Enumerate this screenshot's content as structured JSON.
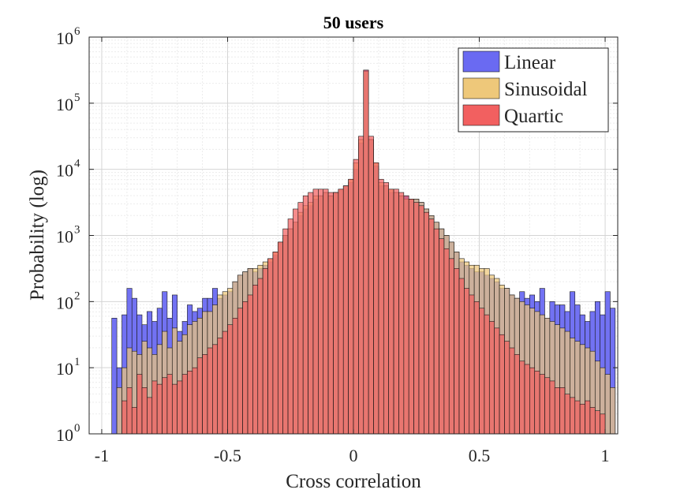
{
  "chart_data": {
    "type": "bar",
    "title": "50 users",
    "xlabel": "Cross correlation",
    "ylabel": "Probability (log)",
    "xlim": [
      -1.05,
      1.05
    ],
    "ylim_log10": [
      0,
      6
    ],
    "yscale": "log",
    "grid": true,
    "legend_position": "top-right",
    "x_ticks": [
      -1,
      -0.5,
      0,
      0.5,
      1
    ],
    "x_tick_labels": [
      "-1",
      "-0.5",
      "0",
      "0.5",
      "1"
    ],
    "y_tick_base": "10",
    "y_tick_exponents": [
      "0",
      "1",
      "2",
      "3",
      "4",
      "5",
      "6"
    ],
    "bin_width": 0.02,
    "bin_start": -0.96,
    "series": [
      {
        "name": "Linear",
        "color": "#6a6af2",
        "log10_values": [
          1.75,
          1.0,
          1.8,
          2.2,
          2.05,
          1.8,
          1.65,
          1.85,
          1.7,
          1.9,
          2.15,
          1.75,
          2.1,
          1.55,
          1.7,
          1.95,
          1.85,
          1.9,
          2.05,
          2.05,
          2.2,
          2.05,
          2.1,
          2.15,
          2.3,
          2.4,
          2.45,
          2.5,
          2.45,
          2.5,
          2.55,
          2.6,
          2.7,
          2.9,
          3.0,
          3.1,
          3.2,
          3.3,
          3.4,
          3.45,
          3.55,
          3.6,
          3.65,
          3.6,
          3.65,
          3.7,
          3.75,
          3.8,
          4.0,
          4.4,
          5.5,
          4.45,
          4.05,
          3.75,
          3.75,
          3.65,
          3.65,
          3.6,
          3.6,
          3.55,
          3.55,
          3.5,
          3.4,
          3.3,
          3.2,
          3.1,
          3.0,
          2.9,
          2.75,
          2.6,
          2.55,
          2.5,
          2.45,
          2.45,
          2.4,
          2.35,
          2.3,
          2.2,
          2.2,
          2.1,
          2.05,
          2.15,
          2.05,
          2.1,
          2.0,
          2.2,
          1.75,
          2.0,
          1.95,
          1.95,
          1.85,
          2.15,
          1.95,
          1.8,
          1.7,
          1.85,
          2.0,
          1.8,
          2.15,
          1.9
        ]
      },
      {
        "name": "Sinusoidal",
        "color": "#eec87a",
        "log10_values": [
          null,
          0.7,
          1.0,
          1.3,
          1.25,
          1.2,
          1.4,
          1.3,
          1.2,
          1.35,
          1.55,
          1.3,
          1.6,
          1.4,
          1.5,
          1.65,
          1.7,
          1.75,
          1.85,
          1.85,
          1.95,
          2.1,
          2.15,
          2.2,
          2.3,
          2.4,
          2.45,
          2.5,
          2.5,
          2.55,
          2.6,
          2.65,
          2.75,
          2.9,
          3.0,
          3.1,
          3.2,
          3.35,
          3.45,
          3.5,
          3.6,
          3.6,
          3.65,
          3.6,
          3.65,
          3.7,
          3.75,
          3.85,
          4.1,
          4.45,
          5.48,
          4.45,
          4.1,
          3.8,
          3.75,
          3.7,
          3.65,
          3.6,
          3.55,
          3.55,
          3.55,
          3.5,
          3.4,
          3.3,
          3.2,
          3.1,
          3.0,
          2.9,
          2.75,
          2.65,
          2.6,
          2.55,
          2.55,
          2.5,
          2.5,
          2.4,
          2.35,
          2.25,
          2.2,
          2.1,
          2.05,
          2.0,
          1.95,
          1.9,
          1.85,
          1.8,
          1.75,
          1.7,
          1.65,
          1.6,
          1.55,
          1.45,
          1.4,
          1.35,
          1.3,
          1.25,
          1.1,
          1.0,
          0.9,
          0.7
        ]
      },
      {
        "name": "Quartic",
        "color": "#f26060",
        "log10_values": [
          null,
          null,
          0.5,
          0.7,
          0.4,
          0.9,
          0.7,
          0.55,
          0.8,
          0.75,
          0.85,
          0.9,
          0.75,
          0.8,
          0.9,
          0.95,
          1.0,
          1.15,
          1.2,
          1.3,
          1.35,
          1.45,
          1.55,
          1.65,
          1.75,
          1.9,
          2.0,
          2.1,
          2.25,
          2.35,
          2.5,
          2.65,
          2.75,
          2.9,
          3.1,
          3.25,
          3.4,
          3.5,
          3.6,
          3.65,
          3.7,
          3.7,
          3.7,
          3.65,
          3.65,
          3.7,
          3.75,
          3.85,
          4.15,
          4.5,
          5.5,
          4.5,
          4.1,
          3.85,
          3.8,
          3.7,
          3.7,
          3.65,
          3.6,
          3.55,
          3.5,
          3.45,
          3.35,
          3.25,
          3.1,
          2.95,
          2.8,
          2.65,
          2.5,
          2.35,
          2.2,
          2.1,
          2.0,
          1.9,
          1.8,
          1.7,
          1.6,
          1.5,
          1.4,
          1.3,
          1.2,
          1.1,
          1.05,
          1.0,
          0.95,
          0.9,
          0.85,
          0.8,
          0.7,
          0.7,
          0.6,
          0.55,
          0.5,
          0.45,
          0.5,
          0.4,
          0.35,
          0.3,
          null,
          null
        ]
      }
    ]
  }
}
